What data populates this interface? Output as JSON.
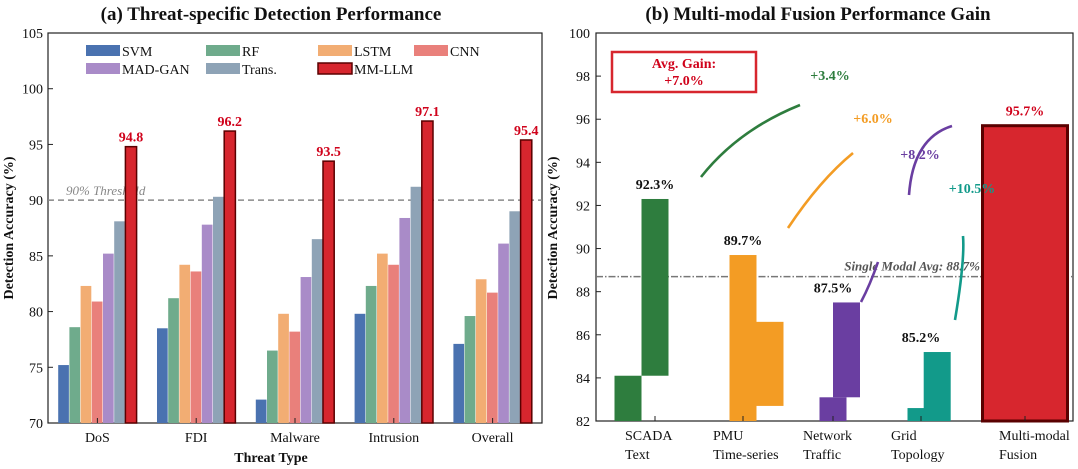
{
  "chart_data": [
    {
      "type": "bar",
      "title": "(a) Threat-specific Detection Performance",
      "xlabel": "Threat Type",
      "ylabel": "Detection Accuracy (%)",
      "ylim": [
        70,
        105
      ],
      "yticks": [
        "70",
        "75",
        "80",
        "85",
        "90",
        "95",
        "100",
        "105"
      ],
      "categories": [
        "DoS",
        "FDI",
        "Malware",
        "Intrusion",
        "Overall"
      ],
      "series": [
        {
          "name": "SVM",
          "color": "#4a72b0",
          "values": [
            75.2,
            78.5,
            72.1,
            79.8,
            77.1
          ]
        },
        {
          "name": "RF",
          "color": "#6fab8c",
          "values": [
            78.6,
            81.2,
            76.5,
            82.3,
            79.6
          ]
        },
        {
          "name": "LSTM",
          "color": "#f2ad73",
          "values": [
            82.3,
            84.2,
            79.8,
            85.2,
            82.9
          ]
        },
        {
          "name": "CNN",
          "color": "#e9807b",
          "values": [
            80.9,
            83.6,
            78.2,
            84.2,
            81.7
          ]
        },
        {
          "name": "MAD-GAN",
          "color": "#a98bc8",
          "values": [
            85.2,
            87.8,
            83.1,
            88.4,
            86.1
          ]
        },
        {
          "name": "Trans.",
          "color": "#8ea3b6",
          "values": [
            88.1,
            90.3,
            86.5,
            91.2,
            89.0
          ]
        },
        {
          "name": "MM-LLM",
          "color": "#d7262e",
          "values": [
            94.8,
            96.2,
            93.5,
            97.1,
            95.4
          ]
        }
      ],
      "data_labels": [
        "94.8",
        "96.2",
        "93.5",
        "97.1",
        "95.4"
      ],
      "threshold": {
        "value": 90,
        "label": "90% Threshold"
      },
      "legend": "top"
    },
    {
      "type": "bar",
      "title": "(b) Multi-modal Fusion Performance Gain",
      "ylabel": "Detection Accuracy (%)",
      "ylim": [
        82,
        100
      ],
      "yticks": [
        "82",
        "84",
        "86",
        "88",
        "90",
        "92",
        "94",
        "96",
        "98",
        "100"
      ],
      "categories": [
        {
          "line1": "SCADA",
          "line2": "Text"
        },
        {
          "line1": "PMU",
          "line2": "Time-series"
        },
        {
          "line1": "Network",
          "line2": "Traffic"
        },
        {
          "line1": "Grid",
          "line2": "Topology"
        },
        {
          "line1": "Multi-modal",
          "line2": "Fusion"
        }
      ],
      "bars": [
        {
          "name": "SCADA",
          "color": "#2e7d3e",
          "label": "92.3%",
          "segments": [
            {
              "from": 82,
              "to": 84.1,
              "offset": -1
            },
            {
              "from": 84.1,
              "to": 92.3,
              "offset": 0
            }
          ]
        },
        {
          "name": "PMU",
          "color": "#f39c24",
          "label": "89.7%",
          "segments": [
            {
              "from": 82,
              "to": 89.7,
              "offset": 0
            },
            {
              "from": 82.7,
              "to": 86.6,
              "offset": 1
            }
          ]
        },
        {
          "name": "Network",
          "color": "#6a3ea1",
          "label": "87.5%",
          "segments": [
            {
              "from": 82,
              "to": 83.1,
              "offset": 0
            },
            {
              "from": 83.1,
              "to": 87.5,
              "offset": 0.5
            }
          ]
        },
        {
          "name": "Grid",
          "color": "#129a8a",
          "label": "85.2%",
          "segments": [
            {
              "from": 82,
              "to": 82.6,
              "offset": 0
            },
            {
              "from": 82,
              "to": 85.2,
              "offset": 0.6
            }
          ]
        },
        {
          "name": "Fusion",
          "color": "#d7262e",
          "label": "95.7%",
          "segments": [
            {
              "from": 82,
              "to": 95.7,
              "offset": 0
            }
          ]
        }
      ],
      "gains": [
        {
          "label": "+3.4%",
          "color": "#2e7d3e"
        },
        {
          "label": "+6.0%",
          "color": "#f39c24"
        },
        {
          "label": "+8.2%",
          "color": "#6a3ea1"
        },
        {
          "label": "+10.5%",
          "color": "#129a8a"
        }
      ],
      "average_line": {
        "value": 88.7,
        "label": "Single Modal Avg: 88.7%"
      },
      "avg_gain_box": {
        "line1": "Avg. Gain:",
        "line2": "+7.0%"
      }
    }
  ]
}
